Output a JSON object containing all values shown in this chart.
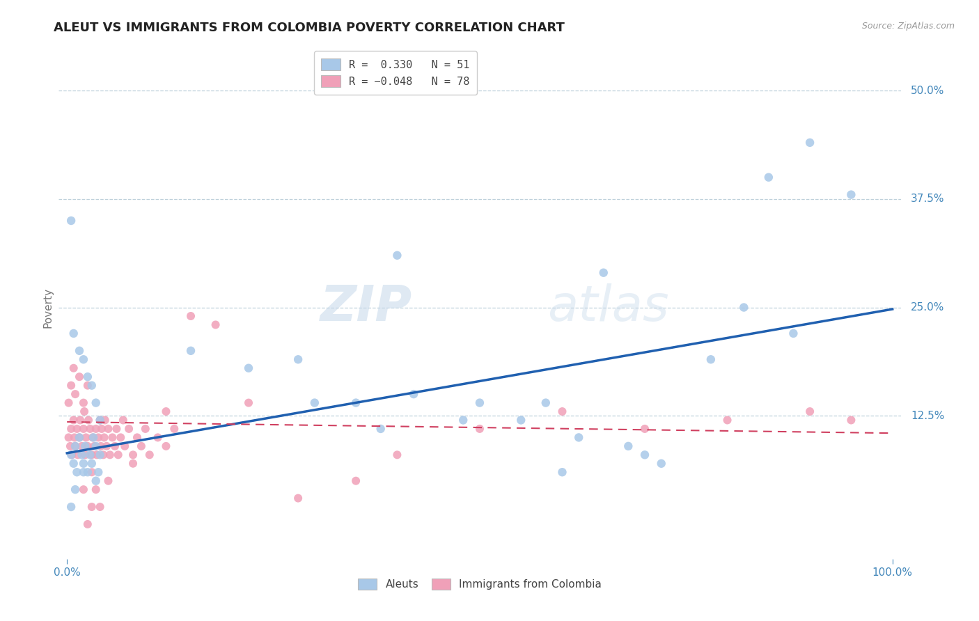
{
  "title": "ALEUT VS IMMIGRANTS FROM COLOMBIA POVERTY CORRELATION CHART",
  "source": "Source: ZipAtlas.com",
  "ylabel": "Poverty",
  "ytick_labels": [
    "12.5%",
    "25.0%",
    "37.5%",
    "50.0%"
  ],
  "ytick_values": [
    0.125,
    0.25,
    0.375,
    0.5
  ],
  "aleut_R": 0.33,
  "aleut_N": 51,
  "colombia_R": -0.048,
  "colombia_N": 78,
  "aleut_color": "#a8c8e8",
  "colombia_color": "#f0a0b8",
  "aleut_line_color": "#2060b0",
  "colombia_line_color": "#d04060",
  "background_color": "#ffffff",
  "grid_color": "#b8ccd8",
  "watermark_zip": "ZIP",
  "watermark_atlas": "atlas",
  "legend_label_aleut": "Aleuts",
  "legend_label_colombia": "Immigrants from Colombia",
  "title_color": "#222222",
  "axis_color": "#4488bb",
  "aleut_scatter_x": [
    0.005,
    0.008,
    0.01,
    0.012,
    0.015,
    0.018,
    0.02,
    0.022,
    0.025,
    0.028,
    0.03,
    0.032,
    0.035,
    0.038,
    0.04,
    0.005,
    0.008,
    0.015,
    0.02,
    0.025,
    0.03,
    0.035,
    0.04,
    0.005,
    0.01,
    0.02,
    0.035,
    0.15,
    0.22,
    0.28,
    0.35,
    0.42,
    0.5,
    0.55,
    0.62,
    0.68,
    0.72,
    0.78,
    0.85,
    0.9,
    0.95,
    0.65,
    0.82,
    0.88,
    0.58,
    0.48,
    0.38,
    0.3,
    0.4,
    0.6,
    0.7
  ],
  "aleut_scatter_y": [
    0.08,
    0.07,
    0.09,
    0.06,
    0.1,
    0.08,
    0.07,
    0.09,
    0.06,
    0.08,
    0.07,
    0.1,
    0.09,
    0.06,
    0.08,
    0.35,
    0.22,
    0.2,
    0.19,
    0.17,
    0.16,
    0.14,
    0.12,
    0.02,
    0.04,
    0.06,
    0.05,
    0.2,
    0.18,
    0.19,
    0.14,
    0.15,
    0.14,
    0.12,
    0.1,
    0.09,
    0.07,
    0.19,
    0.4,
    0.44,
    0.38,
    0.29,
    0.25,
    0.22,
    0.14,
    0.12,
    0.11,
    0.14,
    0.31,
    0.06,
    0.08
  ],
  "colombia_scatter_x": [
    0.002,
    0.004,
    0.005,
    0.006,
    0.008,
    0.009,
    0.01,
    0.012,
    0.013,
    0.015,
    0.016,
    0.018,
    0.02,
    0.021,
    0.022,
    0.023,
    0.025,
    0.026,
    0.028,
    0.03,
    0.031,
    0.033,
    0.035,
    0.036,
    0.038,
    0.04,
    0.041,
    0.042,
    0.044,
    0.045,
    0.046,
    0.048,
    0.05,
    0.052,
    0.055,
    0.058,
    0.06,
    0.062,
    0.065,
    0.068,
    0.07,
    0.075,
    0.08,
    0.085,
    0.09,
    0.095,
    0.1,
    0.11,
    0.12,
    0.13,
    0.002,
    0.005,
    0.008,
    0.01,
    0.015,
    0.02,
    0.025,
    0.03,
    0.035,
    0.04,
    0.18,
    0.22,
    0.28,
    0.35,
    0.15,
    0.12,
    0.08,
    0.05,
    0.03,
    0.025,
    0.02,
    0.6,
    0.7,
    0.8,
    0.9,
    0.95,
    0.5,
    0.4
  ],
  "colombia_scatter_y": [
    0.1,
    0.09,
    0.11,
    0.08,
    0.12,
    0.1,
    0.09,
    0.11,
    0.08,
    0.1,
    0.12,
    0.09,
    0.11,
    0.13,
    0.08,
    0.1,
    0.09,
    0.12,
    0.11,
    0.08,
    0.1,
    0.09,
    0.11,
    0.08,
    0.1,
    0.12,
    0.09,
    0.11,
    0.08,
    0.1,
    0.12,
    0.09,
    0.11,
    0.08,
    0.1,
    0.09,
    0.11,
    0.08,
    0.1,
    0.12,
    0.09,
    0.11,
    0.08,
    0.1,
    0.09,
    0.11,
    0.08,
    0.1,
    0.09,
    0.11,
    0.14,
    0.16,
    0.18,
    0.15,
    0.17,
    0.14,
    0.16,
    0.06,
    0.04,
    0.02,
    0.23,
    0.14,
    0.03,
    0.05,
    0.24,
    0.13,
    0.07,
    0.05,
    0.02,
    0.0,
    0.04,
    0.13,
    0.11,
    0.12,
    0.13,
    0.12,
    0.11,
    0.08
  ]
}
